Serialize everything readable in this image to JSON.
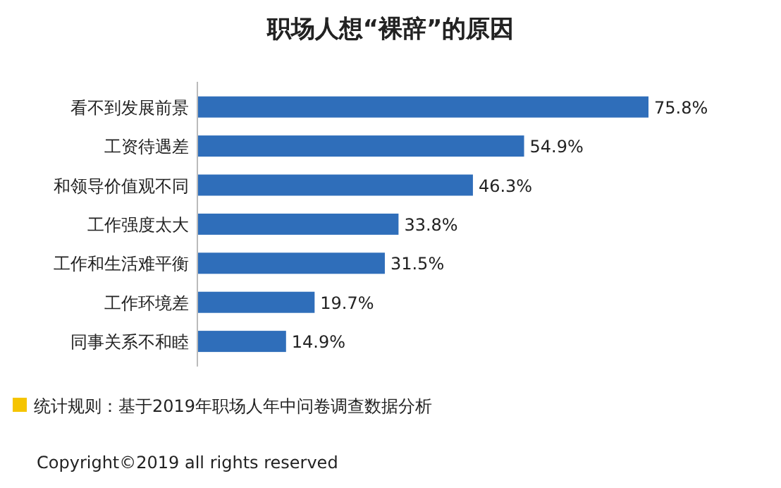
{
  "chart_data": {
    "type": "bar",
    "orientation": "horizontal",
    "title": "职场人想“裸辞”的原因",
    "categories": [
      "看不到发展前景",
      "工资待遇差",
      "和领导价值观不同",
      "工作强度太大",
      "工作和生活难平衡",
      "工作环境差",
      "同事关系不和睦"
    ],
    "values": [
      75.8,
      54.9,
      46.3,
      33.8,
      31.5,
      19.7,
      14.9
    ],
    "color": "#2f6eba",
    "value_labels": [
      "75.8%",
      "54.9%",
      "46.3%",
      "33.8%",
      "31.5%",
      "19.7%",
      "14.9%"
    ],
    "annotations": [
      "统计规则：基于2019年职场人年中问卷调查数据分析",
      "Copyright©2019 all rights reserved"
    ]
  }
}
